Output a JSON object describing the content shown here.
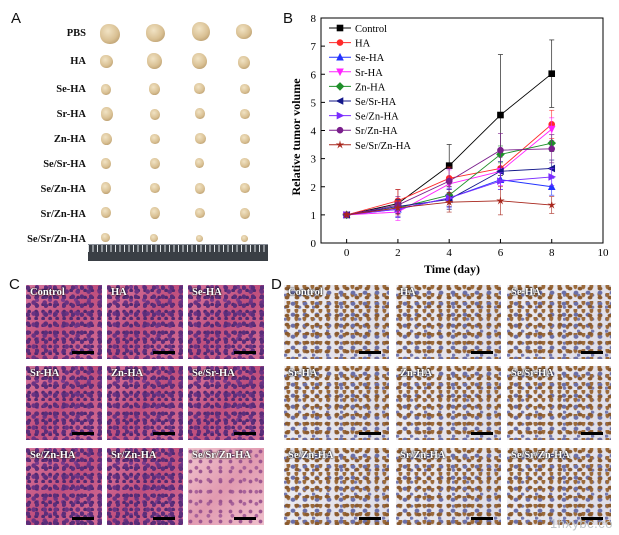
{
  "panels": {
    "a": "A",
    "b": "B",
    "c": "C",
    "d": "D"
  },
  "panelA": {
    "rows": [
      "PBS",
      "HA",
      "Se-HA",
      "Sr-HA",
      "Zn-HA",
      "Se/Sr-HA",
      "Se/Zn-HA",
      "Sr/Zn-HA",
      "Se/Sr/Zn-HA"
    ]
  },
  "chart_data": {
    "type": "line",
    "xlabel": "Time (day)",
    "ylabel": "Relative tumor volume",
    "xlim": [
      -1,
      10
    ],
    "ylim": [
      0,
      8
    ],
    "xticks": [
      0,
      2,
      4,
      6,
      8,
      10
    ],
    "yticks": [
      0,
      1,
      2,
      3,
      4,
      5,
      6,
      7,
      8
    ],
    "x": [
      0,
      2,
      4,
      6,
      8
    ],
    "legend_position": "top-left",
    "series": [
      {
        "name": "Control",
        "color": "#000000",
        "marker": "square",
        "values": [
          1.0,
          1.4,
          2.75,
          4.55,
          6.02
        ],
        "error": [
          0.05,
          0.5,
          0.75,
          2.15,
          1.2
        ]
      },
      {
        "name": "HA",
        "color": "#ff2a2a",
        "marker": "circle",
        "values": [
          1.0,
          1.5,
          2.3,
          2.65,
          4.22
        ],
        "error": [
          0.05,
          0.4,
          0.4,
          0.45,
          0.5
        ]
      },
      {
        "name": "Se-HA",
        "color": "#2233ff",
        "marker": "triangle-up",
        "values": [
          1.0,
          1.2,
          1.6,
          2.25,
          2.0
        ],
        "error": [
          0.05,
          0.3,
          0.35,
          0.35,
          0.3
        ]
      },
      {
        "name": "Sr-HA",
        "color": "#ff22ff",
        "marker": "triangle-down",
        "values": [
          1.0,
          1.1,
          2.1,
          2.55,
          4.05
        ],
        "error": [
          0.05,
          0.3,
          0.5,
          0.5,
          0.4
        ]
      },
      {
        "name": "Zn-HA",
        "color": "#1f8f2a",
        "marker": "diamond",
        "values": [
          1.0,
          1.25,
          1.7,
          3.15,
          3.55
        ],
        "error": [
          0.05,
          0.3,
          0.4,
          0.3,
          0.3
        ]
      },
      {
        "name": "Se/Sr-HA",
        "color": "#13178a",
        "marker": "triangle-left",
        "values": [
          1.0,
          1.3,
          1.55,
          2.55,
          2.65
        ],
        "error": [
          0.05,
          0.25,
          0.35,
          0.35,
          0.3
        ]
      },
      {
        "name": "Se/Zn-HA",
        "color": "#7a2cff",
        "marker": "triangle-right",
        "values": [
          1.0,
          1.2,
          1.6,
          2.2,
          2.35
        ],
        "error": [
          0.05,
          0.25,
          0.3,
          0.3,
          0.3
        ]
      },
      {
        "name": "Sr/Zn-HA",
        "color": "#7a1e8c",
        "marker": "circle",
        "values": [
          1.0,
          1.35,
          2.2,
          3.3,
          3.35
        ],
        "error": [
          0.05,
          0.3,
          0.45,
          0.6,
          0.5
        ]
      },
      {
        "name": "Se/Sr/Zn-HA",
        "color": "#a8261c",
        "marker": "star",
        "values": [
          1.0,
          1.25,
          1.45,
          1.5,
          1.35
        ],
        "error": [
          0.05,
          0.25,
          0.35,
          0.5,
          0.3
        ]
      }
    ]
  },
  "panelC": {
    "labels": [
      "Control",
      "HA",
      "Se-HA",
      "Sr-HA",
      "Zn-HA",
      "Se/Sr-HA",
      "Se/Zn-HA",
      "Sr/Zn-HA",
      "Se/Sr/Zn-HA"
    ]
  },
  "panelD": {
    "labels": [
      "Control",
      "HA",
      "Se-HA",
      "Sr-HA",
      "Zn-HA",
      "Se/Sr-HA",
      "Se/Zn-HA",
      "Sr/Zn-HA",
      "Se/Sr/Zn-HA"
    ]
  },
  "watermark": "1hxybc.co"
}
